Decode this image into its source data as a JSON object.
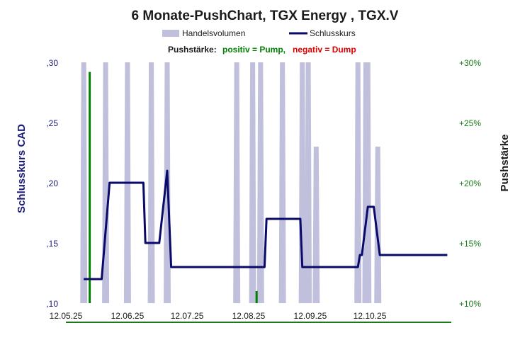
{
  "chart_data": {
    "type": "line",
    "title": "6 Monate-PushChart,  TGX Energy , TGX.V",
    "legend": {
      "volume_label": "Handelsvolumen",
      "close_label": "Schlusskurs",
      "placement": "top"
    },
    "push_note": {
      "prefix": "Pushstärke:",
      "positive": "positiv = Pump,",
      "negative": "negativ = Dump"
    },
    "y_left": {
      "title": "Schlusskurs CAD",
      "range": [
        0.1,
        0.3
      ],
      "ticks": [
        {
          "v": 0.3,
          "label": ",30"
        },
        {
          "v": 0.25,
          "label": ",25"
        },
        {
          "v": 0.2,
          "label": ",20"
        },
        {
          "v": 0.15,
          "label": ",15"
        },
        {
          "v": 0.1,
          "label": ",10"
        }
      ]
    },
    "y_right": {
      "title": "Pushstärke",
      "range": [
        10,
        30
      ],
      "ticks": [
        {
          "v": 30,
          "label": "+30%"
        },
        {
          "v": 25,
          "label": "+25%"
        },
        {
          "v": 20,
          "label": "+20%"
        },
        {
          "v": 15,
          "label": "+15%"
        },
        {
          "v": 10,
          "label": "+10%"
        }
      ]
    },
    "x_axis": {
      "range": [
        "2025-05-12",
        "2025-11-22"
      ],
      "ticks": [
        {
          "date": "2025-05-12",
          "label": "12.05.25"
        },
        {
          "date": "2025-06-12",
          "label": "12.06.25"
        },
        {
          "date": "2025-07-12",
          "label": "12.07.25"
        },
        {
          "date": "2025-08-12",
          "label": "12.08.25"
        },
        {
          "date": "2025-09-12",
          "label": "12.09.25"
        },
        {
          "date": "2025-10-12",
          "label": "12.10.25"
        }
      ]
    },
    "series": [
      {
        "name": "Schlusskurs",
        "kind": "line",
        "color": "#0a0a6a",
        "points": [
          [
            "2025-05-21",
            0.12
          ],
          [
            "2025-05-30",
            0.12
          ],
          [
            "2025-06-03",
            0.2
          ],
          [
            "2025-06-20",
            0.2
          ],
          [
            "2025-06-21",
            0.15
          ],
          [
            "2025-06-28",
            0.15
          ],
          [
            "2025-07-02",
            0.21
          ],
          [
            "2025-07-04",
            0.13
          ],
          [
            "2025-08-20",
            0.13
          ],
          [
            "2025-08-21",
            0.17
          ],
          [
            "2025-09-07",
            0.17
          ],
          [
            "2025-09-08",
            0.13
          ],
          [
            "2025-10-06",
            0.13
          ],
          [
            "2025-10-07",
            0.14
          ],
          [
            "2025-10-08",
            0.14
          ],
          [
            "2025-10-11",
            0.18
          ],
          [
            "2025-10-14",
            0.18
          ],
          [
            "2025-10-17",
            0.14
          ],
          [
            "2025-11-20",
            0.14
          ]
        ]
      },
      {
        "name": "Handelsvolumen",
        "kind": "volume-spikes",
        "color": "#c0c0dc",
        "spikes": [
          [
            "2025-05-21",
            0.3
          ],
          [
            "2025-06-01",
            0.3
          ],
          [
            "2025-06-12",
            0.3
          ],
          [
            "2025-06-24",
            0.3
          ],
          [
            "2025-07-02",
            0.3
          ],
          [
            "2025-08-06",
            0.3
          ],
          [
            "2025-08-14",
            0.3
          ],
          [
            "2025-08-18",
            0.3
          ],
          [
            "2025-08-29",
            0.3
          ],
          [
            "2025-09-08",
            0.3
          ],
          [
            "2025-09-11",
            0.3
          ],
          [
            "2025-09-15",
            0.23
          ],
          [
            "2025-10-06",
            0.3
          ],
          [
            "2025-10-10",
            0.3
          ],
          [
            "2025-10-11",
            0.3
          ],
          [
            "2025-10-16",
            0.23
          ]
        ]
      },
      {
        "name": "Pushstärke",
        "kind": "push-bars",
        "color": "#008000",
        "values": [
          [
            "2025-05-24",
            29.2
          ],
          [
            "2025-08-16",
            11.0
          ]
        ]
      }
    ],
    "grid": false
  }
}
